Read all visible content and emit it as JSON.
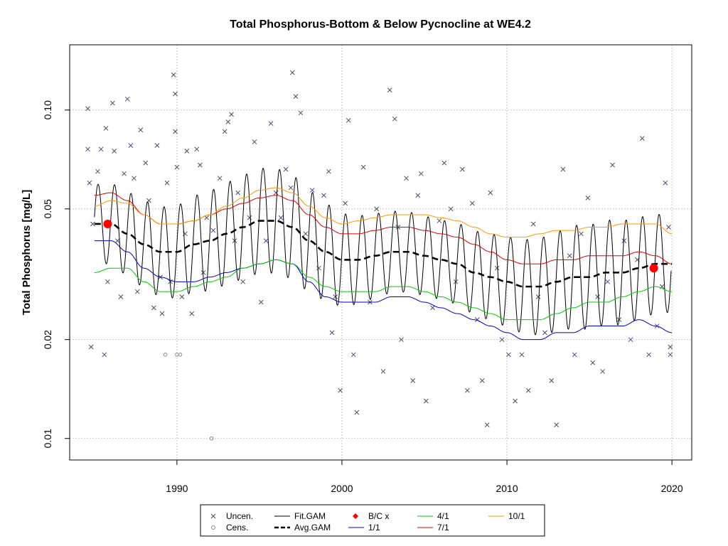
{
  "chart_data": {
    "type": "line",
    "title": "Total Phosphorus-Bottom & Below Pycnocline at WE4.2",
    "ylabel": "Total Phosphorus [mg/L]",
    "xlabel": "",
    "y_scale": "log",
    "xlim": [
      1983.5,
      2021.2
    ],
    "ylim": [
      0.0086,
      0.158
    ],
    "x_ticks": [
      1990,
      2000,
      2010,
      2020
    ],
    "x_tick_labels": [
      "1990",
      "2000",
      "2010",
      "2020"
    ],
    "y_ticks": [
      0.01,
      0.02,
      0.05,
      0.1
    ],
    "y_tick_labels": [
      "0.01",
      "0.02",
      "0.05",
      "0.10"
    ],
    "grid": true,
    "legend_position": "bottom",
    "colors": {
      "uncen": "#4a4f63",
      "cens": "#888888",
      "fit_gam": "#000000",
      "avg_gam": "#000000",
      "bc": "#ff0000",
      "p1_1": "#0000cc",
      "p4_1": "#00cc00",
      "p7_1": "#dd0000",
      "p10_1": "#ff9900"
    },
    "legend": [
      {
        "key": "uncen",
        "label": "Uncen.",
        "symbol": "x"
      },
      {
        "key": "cens",
        "label": "Cens.",
        "symbol": "circle"
      },
      {
        "key": "fit_gam",
        "label": "Fit.GAM",
        "symbol": "line"
      },
      {
        "key": "avg_gam",
        "label": "Avg.GAM",
        "symbol": "dashed"
      },
      {
        "key": "bc",
        "label": "B/C x",
        "symbol": "diamond"
      },
      {
        "key": "p1_1",
        "label": "1/1",
        "symbol": "line"
      },
      {
        "key": "p4_1",
        "label": "4/1",
        "symbol": "line"
      },
      {
        "key": "p7_1",
        "label": "7/1",
        "symbol": "line"
      },
      {
        "key": "p10_1",
        "label": "10/1",
        "symbol": "line"
      }
    ],
    "series": [
      {
        "name": "Avg.GAM",
        "x": [
          1985,
          1986,
          1987,
          1988,
          1989,
          1990,
          1991,
          1992,
          1993,
          1994,
          1995,
          1996,
          1997,
          1998,
          1999,
          2000,
          2001,
          2002,
          2003,
          2004,
          2005,
          2006,
          2007,
          2008,
          2009,
          2010,
          2011,
          2012,
          2013,
          2014,
          2015,
          2016,
          2017,
          2018,
          2019,
          2020
        ],
        "y": [
          0.045,
          0.045,
          0.042,
          0.039,
          0.037,
          0.037,
          0.039,
          0.04,
          0.042,
          0.044,
          0.046,
          0.046,
          0.044,
          0.04,
          0.037,
          0.035,
          0.035,
          0.036,
          0.037,
          0.037,
          0.036,
          0.035,
          0.034,
          0.032,
          0.031,
          0.03,
          0.029,
          0.029,
          0.03,
          0.031,
          0.031,
          0.032,
          0.032,
          0.033,
          0.034,
          0.034
        ]
      },
      {
        "name": "1/1",
        "x": [
          1985,
          1986,
          1987,
          1988,
          1989,
          1990,
          1991,
          1992,
          1993,
          1994,
          1995,
          1996,
          1997,
          1998,
          1999,
          2000,
          2001,
          2002,
          2003,
          2004,
          2005,
          2006,
          2007,
          2008,
          2009,
          2010,
          2011,
          2012,
          2013,
          2014,
          2015,
          2016,
          2017,
          2018,
          2019,
          2020
        ],
        "y": [
          0.04,
          0.04,
          0.037,
          0.033,
          0.031,
          0.03,
          0.03,
          0.031,
          0.032,
          0.033,
          0.034,
          0.035,
          0.034,
          0.03,
          0.027,
          0.026,
          0.026,
          0.026,
          0.027,
          0.027,
          0.026,
          0.025,
          0.024,
          0.023,
          0.022,
          0.021,
          0.02,
          0.02,
          0.021,
          0.021,
          0.022,
          0.022,
          0.022,
          0.023,
          0.022,
          0.021
        ]
      },
      {
        "name": "4/1",
        "x": [
          1985,
          1986,
          1987,
          1988,
          1989,
          1990,
          1991,
          1992,
          1993,
          1994,
          1995,
          1996,
          1997,
          1998,
          1999,
          2000,
          2001,
          2002,
          2003,
          2004,
          2005,
          2006,
          2007,
          2008,
          2009,
          2010,
          2011,
          2012,
          2013,
          2014,
          2015,
          2016,
          2017,
          2018,
          2019,
          2020
        ],
        "y": [
          0.032,
          0.033,
          0.033,
          0.03,
          0.028,
          0.028,
          0.029,
          0.03,
          0.031,
          0.033,
          0.034,
          0.035,
          0.034,
          0.031,
          0.029,
          0.028,
          0.028,
          0.028,
          0.029,
          0.029,
          0.028,
          0.027,
          0.026,
          0.025,
          0.024,
          0.023,
          0.023,
          0.023,
          0.024,
          0.025,
          0.026,
          0.026,
          0.027,
          0.028,
          0.029,
          0.028
        ]
      },
      {
        "name": "7/1",
        "x": [
          1985,
          1986,
          1987,
          1988,
          1989,
          1990,
          1991,
          1992,
          1993,
          1994,
          1995,
          1996,
          1997,
          1998,
          1999,
          2000,
          2001,
          2002,
          2003,
          2004,
          2005,
          2006,
          2007,
          2008,
          2009,
          2010,
          2011,
          2012,
          2013,
          2014,
          2015,
          2016,
          2017,
          2018,
          2019,
          2020
        ],
        "y": [
          0.055,
          0.056,
          0.053,
          0.048,
          0.045,
          0.045,
          0.046,
          0.048,
          0.05,
          0.052,
          0.054,
          0.055,
          0.053,
          0.048,
          0.044,
          0.042,
          0.042,
          0.043,
          0.044,
          0.044,
          0.043,
          0.042,
          0.041,
          0.039,
          0.037,
          0.035,
          0.034,
          0.034,
          0.035,
          0.035,
          0.036,
          0.036,
          0.036,
          0.037,
          0.036,
          0.034
        ]
      },
      {
        "name": "10/1",
        "x": [
          1985,
          1986,
          1987,
          1988,
          1989,
          1990,
          1991,
          1992,
          1993,
          1994,
          1995,
          1996,
          1997,
          1998,
          1999,
          2000,
          2001,
          2002,
          2003,
          2004,
          2005,
          2006,
          2007,
          2008,
          2009,
          2010,
          2011,
          2012,
          2013,
          2014,
          2015,
          2016,
          2017,
          2018,
          2019,
          2020
        ],
        "y": [
          0.051,
          0.053,
          0.052,
          0.048,
          0.045,
          0.045,
          0.046,
          0.048,
          0.051,
          0.054,
          0.057,
          0.058,
          0.056,
          0.051,
          0.047,
          0.045,
          0.046,
          0.047,
          0.048,
          0.048,
          0.048,
          0.047,
          0.046,
          0.044,
          0.042,
          0.041,
          0.041,
          0.042,
          0.043,
          0.043,
          0.044,
          0.044,
          0.045,
          0.045,
          0.045,
          0.042
        ]
      }
    ],
    "fit_gam_description": "seasonal oscillation around Avg.GAM; annual peaks ~0.055-0.075, troughs ~0.023-0.032",
    "bc_points": [
      {
        "x": 1985.8,
        "y": 0.045
      },
      {
        "x": 2018.9,
        "y": 0.033
      }
    ],
    "uncensored_points": [
      [
        1984.6,
        0.101
      ],
      [
        1984.6,
        0.076
      ],
      [
        1984.7,
        0.06
      ],
      [
        1984.8,
        0.019
      ],
      [
        1984.9,
        0.045
      ],
      [
        1985.2,
        0.065
      ],
      [
        1985.4,
        0.076
      ],
      [
        1985.6,
        0.018
      ],
      [
        1985.7,
        0.088
      ],
      [
        1985.8,
        0.03
      ],
      [
        1986.1,
        0.105
      ],
      [
        1986.2,
        0.075
      ],
      [
        1986.4,
        0.04
      ],
      [
        1986.6,
        0.027
      ],
      [
        1986.8,
        0.064
      ],
      [
        1987.0,
        0.108
      ],
      [
        1987.2,
        0.078
      ],
      [
        1987.4,
        0.062
      ],
      [
        1987.6,
        0.028
      ],
      [
        1987.8,
        0.087
      ],
      [
        1988.1,
        0.069
      ],
      [
        1988.3,
        0.053
      ],
      [
        1988.6,
        0.025
      ],
      [
        1988.8,
        0.078
      ],
      [
        1989.0,
        0.031
      ],
      [
        1989.1,
        0.024
      ],
      [
        1989.4,
        0.06
      ],
      [
        1989.6,
        0.03
      ],
      [
        1989.8,
        0.128
      ],
      [
        1989.9,
        0.112
      ],
      [
        1989.9,
        0.086
      ],
      [
        1990.0,
        0.067
      ],
      [
        1990.3,
        0.027
      ],
      [
        1990.5,
        0.042
      ],
      [
        1990.6,
        0.075
      ],
      [
        1990.9,
        0.024
      ],
      [
        1991.2,
        0.076
      ],
      [
        1991.4,
        0.068
      ],
      [
        1991.6,
        0.032
      ],
      [
        1991.8,
        0.047
      ],
      [
        1992.2,
        0.043
      ],
      [
        1992.6,
        0.062
      ],
      [
        1992.9,
        0.086
      ],
      [
        1993.1,
        0.092
      ],
      [
        1993.3,
        0.097
      ],
      [
        1993.5,
        0.04
      ],
      [
        1993.7,
        0.056
      ],
      [
        1994.0,
        0.03
      ],
      [
        1994.4,
        0.047
      ],
      [
        1994.7,
        0.08
      ],
      [
        1995.1,
        0.026
      ],
      [
        1995.4,
        0.04
      ],
      [
        1995.7,
        0.091
      ],
      [
        1996.0,
        0.056
      ],
      [
        1996.3,
        0.047
      ],
      [
        1996.6,
        0.066
      ],
      [
        1996.9,
        0.058
      ],
      [
        1997.0,
        0.13
      ],
      [
        1997.2,
        0.11
      ],
      [
        1997.5,
        0.098
      ],
      [
        1997.8,
        0.042
      ],
      [
        1998.2,
        0.057
      ],
      [
        1998.6,
        0.033
      ],
      [
        1998.9,
        0.055
      ],
      [
        1999.2,
        0.065
      ],
      [
        1999.4,
        0.021
      ],
      [
        1999.6,
        0.027
      ],
      [
        1999.9,
        0.014
      ],
      [
        2000.2,
        0.052
      ],
      [
        2000.4,
        0.093
      ],
      [
        2000.7,
        0.018
      ],
      [
        2000.9,
        0.012
      ],
      [
        2001.3,
        0.067
      ],
      [
        2001.7,
        0.026
      ],
      [
        2002.1,
        0.05
      ],
      [
        2002.5,
        0.016
      ],
      [
        2002.9,
        0.115
      ],
      [
        2003.2,
        0.094
      ],
      [
        2003.4,
        0.044
      ],
      [
        2003.6,
        0.02
      ],
      [
        2003.9,
        0.062
      ],
      [
        2004.3,
        0.015
      ],
      [
        2004.6,
        0.055
      ],
      [
        2004.8,
        0.064
      ],
      [
        2005.1,
        0.013
      ],
      [
        2005.5,
        0.025
      ],
      [
        2005.9,
        0.046
      ],
      [
        2006.2,
        0.069
      ],
      [
        2006.6,
        0.05
      ],
      [
        2006.9,
        0.03
      ],
      [
        2007.3,
        0.066
      ],
      [
        2007.6,
        0.014
      ],
      [
        2007.9,
        0.052
      ],
      [
        2008.2,
        0.023
      ],
      [
        2008.5,
        0.015
      ],
      [
        2008.8,
        0.011
      ],
      [
        2009.0,
        0.056
      ],
      [
        2009.4,
        0.033
      ],
      [
        2009.7,
        0.02
      ],
      [
        2010.1,
        0.018
      ],
      [
        2010.5,
        0.013
      ],
      [
        2010.9,
        0.018
      ],
      [
        2011.3,
        0.014
      ],
      [
        2011.6,
        0.045
      ],
      [
        2011.9,
        0.027
      ],
      [
        2012.3,
        0.021
      ],
      [
        2012.7,
        0.015
      ],
      [
        2013.0,
        0.011
      ],
      [
        2013.4,
        0.066
      ],
      [
        2013.8,
        0.036
      ],
      [
        2014.1,
        0.018
      ],
      [
        2014.5,
        0.042
      ],
      [
        2014.9,
        0.054
      ],
      [
        2015.2,
        0.017
      ],
      [
        2015.5,
        0.027
      ],
      [
        2015.8,
        0.016
      ],
      [
        2016.1,
        0.03
      ],
      [
        2016.4,
        0.068
      ],
      [
        2016.8,
        0.023
      ],
      [
        2017.1,
        0.04
      ],
      [
        2017.5,
        0.02
      ],
      [
        2017.9,
        0.035
      ],
      [
        2018.2,
        0.082
      ],
      [
        2018.6,
        0.018
      ],
      [
        2018.9,
        0.033
      ],
      [
        2019.1,
        0.022
      ],
      [
        2019.4,
        0.029
      ],
      [
        2019.6,
        0.06
      ],
      [
        2019.8,
        0.044
      ],
      [
        2019.9,
        0.018
      ],
      [
        2019.9,
        0.019
      ]
    ],
    "censored_points": [
      [
        1989.3,
        0.018
      ],
      [
        1990.0,
        0.018
      ],
      [
        1990.2,
        0.018
      ],
      [
        1992.1,
        0.01
      ]
    ]
  }
}
